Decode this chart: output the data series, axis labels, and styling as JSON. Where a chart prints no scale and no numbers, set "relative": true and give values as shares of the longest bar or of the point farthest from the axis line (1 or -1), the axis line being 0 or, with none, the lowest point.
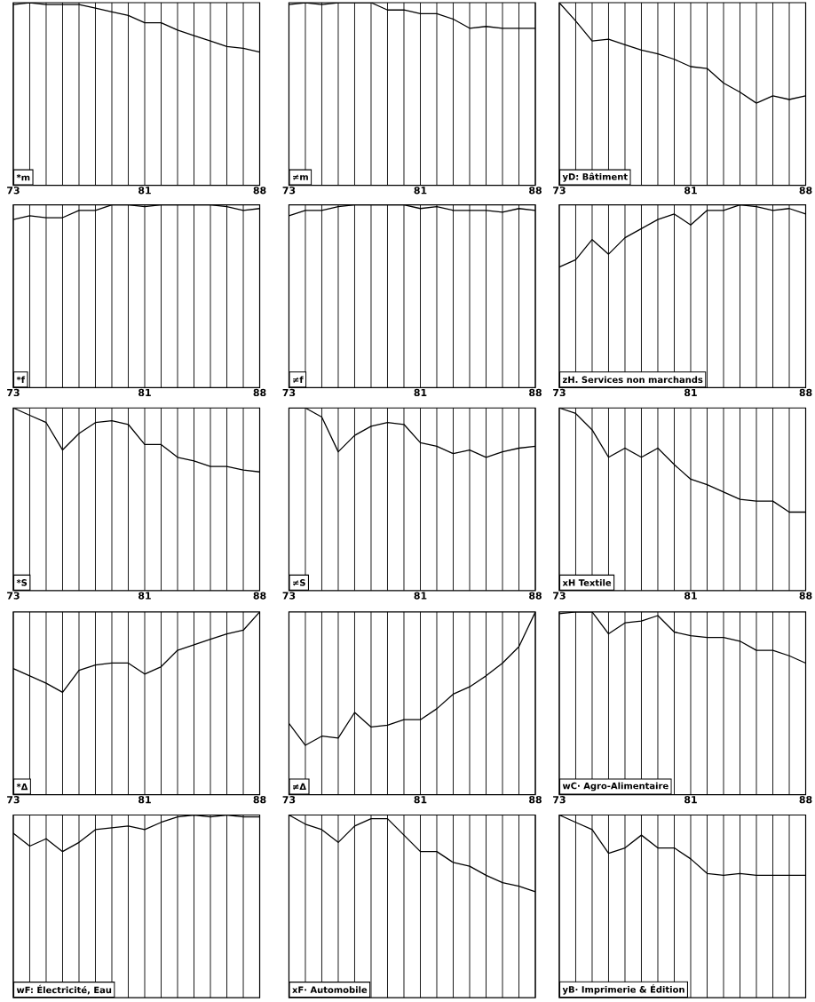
{
  "chart_data": [
    {
      "type": "line",
      "title": "*m",
      "relative": true,
      "grid": "x",
      "tick_labels": "x",
      "color": "#000000",
      "xlim": [
        73,
        88
      ],
      "xticks": [
        73,
        {
          "value": 74,
          "label": null
        },
        {
          "value": 75,
          "label": null
        },
        {
          "value": 76,
          "label": null
        },
        {
          "value": 77,
          "label": null
        },
        {
          "value": 78,
          "label": null
        },
        {
          "value": 79,
          "label": null
        },
        {
          "value": 80,
          "label": null
        },
        81,
        {
          "value": 82,
          "label": null
        },
        {
          "value": 83,
          "label": null
        },
        {
          "value": 84,
          "label": null
        },
        {
          "value": 85,
          "label": null
        },
        {
          "value": 86,
          "label": null
        },
        {
          "value": 87,
          "label": null
        },
        88
      ],
      "x": [
        73,
        74,
        75,
        76,
        77,
        78,
        79,
        80,
        81,
        82,
        83,
        84,
        85,
        86,
        87,
        88
      ],
      "values": [
        0.99,
        1.0,
        0.99,
        0.99,
        0.99,
        0.97,
        0.95,
        0.93,
        0.89,
        0.89,
        0.85,
        0.82,
        0.79,
        0.76,
        0.75,
        0.73
      ]
    },
    {
      "type": "line",
      "title": "≠m",
      "relative": true,
      "grid": "x",
      "tick_labels": "x",
      "color": "#000000",
      "xlim": [
        73,
        88
      ],
      "xticks": [
        73,
        {
          "value": 74,
          "label": null
        },
        {
          "value": 75,
          "label": null
        },
        {
          "value": 76,
          "label": null
        },
        {
          "value": 77,
          "label": null
        },
        {
          "value": 78,
          "label": null
        },
        {
          "value": 79,
          "label": null
        },
        {
          "value": 80,
          "label": null
        },
        81,
        {
          "value": 82,
          "label": null
        },
        {
          "value": 83,
          "label": null
        },
        {
          "value": 84,
          "label": null
        },
        {
          "value": 85,
          "label": null
        },
        {
          "value": 86,
          "label": null
        },
        {
          "value": 87,
          "label": null
        },
        88
      ],
      "x": [
        73,
        74,
        75,
        76,
        77,
        78,
        79,
        80,
        81,
        82,
        83,
        84,
        85,
        86,
        87,
        88
      ],
      "values": [
        0.99,
        1.0,
        0.99,
        1.0,
        1.0,
        1.0,
        0.96,
        0.96,
        0.94,
        0.94,
        0.91,
        0.86,
        0.87,
        0.86,
        0.86,
        0.86
      ]
    },
    {
      "type": "line",
      "title": "yD: Bâtiment",
      "relative": true,
      "grid": "x",
      "tick_labels": "x",
      "color": "#000000",
      "xlim": [
        73,
        88
      ],
      "xticks": [
        73,
        {
          "value": 74,
          "label": null
        },
        {
          "value": 75,
          "label": null
        },
        {
          "value": 76,
          "label": null
        },
        {
          "value": 77,
          "label": null
        },
        {
          "value": 78,
          "label": null
        },
        {
          "value": 79,
          "label": null
        },
        {
          "value": 80,
          "label": null
        },
        81,
        {
          "value": 82,
          "label": null
        },
        {
          "value": 83,
          "label": null
        },
        {
          "value": 84,
          "label": null
        },
        {
          "value": 85,
          "label": null
        },
        {
          "value": 86,
          "label": null
        },
        {
          "value": 87,
          "label": null
        },
        88
      ],
      "x": [
        73,
        74,
        75,
        76,
        77,
        78,
        79,
        80,
        81,
        82,
        83,
        84,
        85,
        86,
        87,
        88
      ],
      "values": [
        1.0,
        0.9,
        0.79,
        0.8,
        0.77,
        0.74,
        0.72,
        0.69,
        0.65,
        0.64,
        0.56,
        0.51,
        0.45,
        0.49,
        0.47,
        0.49
      ]
    },
    {
      "type": "line",
      "title": "*f",
      "relative": true,
      "grid": "x",
      "tick_labels": "x",
      "color": "#000000",
      "xlim": [
        73,
        88
      ],
      "xticks": [
        73,
        {
          "value": 74,
          "label": null
        },
        {
          "value": 75,
          "label": null
        },
        {
          "value": 76,
          "label": null
        },
        {
          "value": 77,
          "label": null
        },
        {
          "value": 78,
          "label": null
        },
        {
          "value": 79,
          "label": null
        },
        {
          "value": 80,
          "label": null
        },
        81,
        {
          "value": 82,
          "label": null
        },
        {
          "value": 83,
          "label": null
        },
        {
          "value": 84,
          "label": null
        },
        {
          "value": 85,
          "label": null
        },
        {
          "value": 86,
          "label": null
        },
        {
          "value": 87,
          "label": null
        },
        88
      ],
      "x": [
        73,
        74,
        75,
        76,
        77,
        78,
        79,
        80,
        81,
        82,
        83,
        84,
        85,
        86,
        87,
        88
      ],
      "values": [
        0.92,
        0.94,
        0.93,
        0.93,
        0.97,
        0.97,
        1.0,
        1.0,
        0.99,
        1.0,
        1.0,
        1.0,
        1.0,
        0.99,
        0.97,
        0.98
      ]
    },
    {
      "type": "line",
      "title": "≠f",
      "relative": true,
      "grid": "x",
      "tick_labels": "x",
      "color": "#000000",
      "xlim": [
        73,
        88
      ],
      "xticks": [
        73,
        {
          "value": 74,
          "label": null
        },
        {
          "value": 75,
          "label": null
        },
        {
          "value": 76,
          "label": null
        },
        {
          "value": 77,
          "label": null
        },
        {
          "value": 78,
          "label": null
        },
        {
          "value": 79,
          "label": null
        },
        {
          "value": 80,
          "label": null
        },
        81,
        {
          "value": 82,
          "label": null
        },
        {
          "value": 83,
          "label": null
        },
        {
          "value": 84,
          "label": null
        },
        {
          "value": 85,
          "label": null
        },
        {
          "value": 86,
          "label": null
        },
        {
          "value": 87,
          "label": null
        },
        88
      ],
      "x": [
        73,
        74,
        75,
        76,
        77,
        78,
        79,
        80,
        81,
        82,
        83,
        84,
        85,
        86,
        87,
        88
      ],
      "values": [
        0.94,
        0.97,
        0.97,
        0.99,
        1.0,
        1.0,
        1.0,
        1.0,
        0.98,
        0.99,
        0.97,
        0.97,
        0.97,
        0.96,
        0.98,
        0.97
      ]
    },
    {
      "type": "line",
      "title": "zH. Services non marchands",
      "relative": true,
      "grid": "x",
      "tick_labels": "x",
      "color": "#000000",
      "xlim": [
        73,
        88
      ],
      "xticks": [
        73,
        {
          "value": 74,
          "label": null
        },
        {
          "value": 75,
          "label": null
        },
        {
          "value": 76,
          "label": null
        },
        {
          "value": 77,
          "label": null
        },
        {
          "value": 78,
          "label": null
        },
        {
          "value": 79,
          "label": null
        },
        {
          "value": 80,
          "label": null
        },
        81,
        {
          "value": 82,
          "label": null
        },
        {
          "value": 83,
          "label": null
        },
        {
          "value": 84,
          "label": null
        },
        {
          "value": 85,
          "label": null
        },
        {
          "value": 86,
          "label": null
        },
        {
          "value": 87,
          "label": null
        },
        88
      ],
      "x": [
        73,
        74,
        75,
        76,
        77,
        78,
        79,
        80,
        81,
        82,
        83,
        84,
        85,
        86,
        87,
        88
      ],
      "values": [
        0.66,
        0.7,
        0.81,
        0.73,
        0.82,
        0.87,
        0.92,
        0.95,
        0.89,
        0.97,
        0.97,
        1.0,
        0.99,
        0.97,
        0.98,
        0.95
      ]
    },
    {
      "type": "line",
      "title": "*S",
      "relative": true,
      "grid": "x",
      "tick_labels": "x",
      "color": "#000000",
      "xlim": [
        73,
        88
      ],
      "xticks": [
        73,
        {
          "value": 74,
          "label": null
        },
        {
          "value": 75,
          "label": null
        },
        {
          "value": 76,
          "label": null
        },
        {
          "value": 77,
          "label": null
        },
        {
          "value": 78,
          "label": null
        },
        {
          "value": 79,
          "label": null
        },
        {
          "value": 80,
          "label": null
        },
        81,
        {
          "value": 82,
          "label": null
        },
        {
          "value": 83,
          "label": null
        },
        {
          "value": 84,
          "label": null
        },
        {
          "value": 85,
          "label": null
        },
        {
          "value": 86,
          "label": null
        },
        {
          "value": 87,
          "label": null
        },
        88
      ],
      "x": [
        73,
        74,
        75,
        76,
        77,
        78,
        79,
        80,
        81,
        82,
        83,
        84,
        85,
        86,
        87,
        88
      ],
      "values": [
        1.0,
        0.96,
        0.92,
        0.77,
        0.86,
        0.92,
        0.93,
        0.91,
        0.8,
        0.8,
        0.73,
        0.71,
        0.68,
        0.68,
        0.66,
        0.65
      ]
    },
    {
      "type": "line",
      "title": "≠S",
      "relative": true,
      "grid": "x",
      "tick_labels": "x",
      "color": "#000000",
      "xlim": [
        73,
        88
      ],
      "xticks": [
        73,
        {
          "value": 74,
          "label": null
        },
        {
          "value": 75,
          "label": null
        },
        {
          "value": 76,
          "label": null
        },
        {
          "value": 77,
          "label": null
        },
        {
          "value": 78,
          "label": null
        },
        {
          "value": 79,
          "label": null
        },
        {
          "value": 80,
          "label": null
        },
        81,
        {
          "value": 82,
          "label": null
        },
        {
          "value": 83,
          "label": null
        },
        {
          "value": 84,
          "label": null
        },
        {
          "value": 85,
          "label": null
        },
        {
          "value": 86,
          "label": null
        },
        {
          "value": 87,
          "label": null
        },
        88
      ],
      "x": [
        73,
        74,
        75,
        76,
        77,
        78,
        79,
        80,
        81,
        82,
        83,
        84,
        85,
        86,
        87,
        88
      ],
      "values": [
        1.0,
        1.0,
        0.95,
        0.76,
        0.85,
        0.9,
        0.92,
        0.91,
        0.81,
        0.79,
        0.75,
        0.77,
        0.73,
        0.76,
        0.78,
        0.79
      ]
    },
    {
      "type": "line",
      "title": "xH  Textile",
      "relative": true,
      "grid": "x",
      "tick_labels": "x",
      "color": "#000000",
      "xlim": [
        73,
        88
      ],
      "xticks": [
        73,
        {
          "value": 74,
          "label": null
        },
        {
          "value": 75,
          "label": null
        },
        {
          "value": 76,
          "label": null
        },
        {
          "value": 77,
          "label": null
        },
        {
          "value": 78,
          "label": null
        },
        {
          "value": 79,
          "label": null
        },
        {
          "value": 80,
          "label": null
        },
        81,
        {
          "value": 82,
          "label": null
        },
        {
          "value": 83,
          "label": null
        },
        {
          "value": 84,
          "label": null
        },
        {
          "value": 85,
          "label": null
        },
        {
          "value": 86,
          "label": null
        },
        {
          "value": 87,
          "label": null
        },
        88
      ],
      "x": [
        73,
        74,
        75,
        76,
        77,
        78,
        79,
        80,
        81,
        82,
        83,
        84,
        85,
        86,
        87,
        88
      ],
      "values": [
        1.0,
        0.97,
        0.88,
        0.73,
        0.78,
        0.73,
        0.78,
        0.69,
        0.61,
        0.58,
        0.54,
        0.5,
        0.49,
        0.49,
        0.43,
        0.43
      ]
    },
    {
      "type": "line",
      "title": "*Δ",
      "relative": true,
      "grid": "x",
      "tick_labels": "x",
      "color": "#000000",
      "xlim": [
        73,
        88
      ],
      "xticks": [
        73,
        {
          "value": 74,
          "label": null
        },
        {
          "value": 75,
          "label": null
        },
        {
          "value": 76,
          "label": null
        },
        {
          "value": 77,
          "label": null
        },
        {
          "value": 78,
          "label": null
        },
        {
          "value": 79,
          "label": null
        },
        {
          "value": 80,
          "label": null
        },
        81,
        {
          "value": 82,
          "label": null
        },
        {
          "value": 83,
          "label": null
        },
        {
          "value": 84,
          "label": null
        },
        {
          "value": 85,
          "label": null
        },
        {
          "value": 86,
          "label": null
        },
        {
          "value": 87,
          "label": null
        },
        88
      ],
      "x": [
        73,
        74,
        75,
        76,
        77,
        78,
        79,
        80,
        81,
        82,
        83,
        84,
        85,
        86,
        87,
        88
      ],
      "values": [
        0.69,
        0.65,
        0.61,
        0.56,
        0.68,
        0.71,
        0.72,
        0.72,
        0.66,
        0.7,
        0.79,
        0.82,
        0.85,
        0.88,
        0.9,
        1.0
      ]
    },
    {
      "type": "line",
      "title": "≠Δ",
      "relative": true,
      "grid": "x",
      "tick_labels": "x",
      "color": "#000000",
      "xlim": [
        73,
        88
      ],
      "xticks": [
        73,
        {
          "value": 74,
          "label": null
        },
        {
          "value": 75,
          "label": null
        },
        {
          "value": 76,
          "label": null
        },
        {
          "value": 77,
          "label": null
        },
        {
          "value": 78,
          "label": null
        },
        {
          "value": 79,
          "label": null
        },
        {
          "value": 80,
          "label": null
        },
        81,
        {
          "value": 82,
          "label": null
        },
        {
          "value": 83,
          "label": null
        },
        {
          "value": 84,
          "label": null
        },
        {
          "value": 85,
          "label": null
        },
        {
          "value": 86,
          "label": null
        },
        {
          "value": 87,
          "label": null
        },
        88
      ],
      "x": [
        73,
        74,
        75,
        76,
        77,
        78,
        79,
        80,
        81,
        82,
        83,
        84,
        85,
        86,
        87,
        88
      ],
      "values": [
        0.39,
        0.27,
        0.32,
        0.31,
        0.45,
        0.37,
        0.38,
        0.41,
        0.41,
        0.47,
        0.55,
        0.59,
        0.65,
        0.72,
        0.81,
        1.0
      ]
    },
    {
      "type": "line",
      "title": "wC· Agro-Alimentaire",
      "relative": true,
      "grid": "x",
      "tick_labels": "x",
      "color": "#000000",
      "xlim": [
        73,
        88
      ],
      "xticks": [
        73,
        {
          "value": 74,
          "label": null
        },
        {
          "value": 75,
          "label": null
        },
        {
          "value": 76,
          "label": null
        },
        {
          "value": 77,
          "label": null
        },
        {
          "value": 78,
          "label": null
        },
        {
          "value": 79,
          "label": null
        },
        {
          "value": 80,
          "label": null
        },
        81,
        {
          "value": 82,
          "label": null
        },
        {
          "value": 83,
          "label": null
        },
        {
          "value": 84,
          "label": null
        },
        {
          "value": 85,
          "label": null
        },
        {
          "value": 86,
          "label": null
        },
        {
          "value": 87,
          "label": null
        },
        88
      ],
      "x": [
        73,
        74,
        75,
        76,
        77,
        78,
        79,
        80,
        81,
        82,
        83,
        84,
        85,
        86,
        87,
        88
      ],
      "values": [
        0.99,
        1.0,
        1.0,
        0.88,
        0.94,
        0.95,
        0.98,
        0.89,
        0.87,
        0.86,
        0.86,
        0.84,
        0.79,
        0.79,
        0.76,
        0.72
      ]
    },
    {
      "type": "line",
      "title": "wF: Électricité, Eau",
      "relative": true,
      "grid": "x",
      "tick_labels": false,
      "color": "#000000",
      "xlim": [
        73,
        88
      ],
      "xticks": [
        73,
        {
          "value": 74,
          "label": null
        },
        {
          "value": 75,
          "label": null
        },
        {
          "value": 76,
          "label": null
        },
        {
          "value": 77,
          "label": null
        },
        {
          "value": 78,
          "label": null
        },
        {
          "value": 79,
          "label": null
        },
        {
          "value": 80,
          "label": null
        },
        81,
        {
          "value": 82,
          "label": null
        },
        {
          "value": 83,
          "label": null
        },
        {
          "value": 84,
          "label": null
        },
        {
          "value": 85,
          "label": null
        },
        {
          "value": 86,
          "label": null
        },
        {
          "value": 87,
          "label": null
        },
        88
      ],
      "x": [
        73,
        74,
        75,
        76,
        77,
        78,
        79,
        80,
        81,
        82,
        83,
        84,
        85,
        86,
        87,
        88
      ],
      "values": [
        0.9,
        0.83,
        0.87,
        0.8,
        0.85,
        0.92,
        0.93,
        0.94,
        0.92,
        0.96,
        0.99,
        1.0,
        0.99,
        1.0,
        0.99,
        0.99
      ]
    },
    {
      "type": "line",
      "title": "xF· Automobile",
      "relative": true,
      "grid": "x",
      "tick_labels": false,
      "color": "#000000",
      "xlim": [
        73,
        88
      ],
      "xticks": [
        73,
        {
          "value": 74,
          "label": null
        },
        {
          "value": 75,
          "label": null
        },
        {
          "value": 76,
          "label": null
        },
        {
          "value": 77,
          "label": null
        },
        {
          "value": 78,
          "label": null
        },
        {
          "value": 79,
          "label": null
        },
        {
          "value": 80,
          "label": null
        },
        81,
        {
          "value": 82,
          "label": null
        },
        {
          "value": 83,
          "label": null
        },
        {
          "value": 84,
          "label": null
        },
        {
          "value": 85,
          "label": null
        },
        {
          "value": 86,
          "label": null
        },
        {
          "value": 87,
          "label": null
        },
        88
      ],
      "x": [
        73,
        74,
        75,
        76,
        77,
        78,
        79,
        80,
        81,
        82,
        83,
        84,
        85,
        86,
        87,
        88
      ],
      "values": [
        1.0,
        0.95,
        0.92,
        0.85,
        0.94,
        0.98,
        0.98,
        0.89,
        0.8,
        0.8,
        0.74,
        0.72,
        0.67,
        0.63,
        0.61,
        0.58
      ]
    },
    {
      "type": "line",
      "title": "yB· Imprimerie & Édition",
      "relative": true,
      "grid": "x",
      "tick_labels": false,
      "color": "#000000",
      "xlim": [
        73,
        88
      ],
      "xticks": [
        73,
        {
          "value": 74,
          "label": null
        },
        {
          "value": 75,
          "label": null
        },
        {
          "value": 76,
          "label": null
        },
        {
          "value": 77,
          "label": null
        },
        {
          "value": 78,
          "label": null
        },
        {
          "value": 79,
          "label": null
        },
        {
          "value": 80,
          "label": null
        },
        81,
        {
          "value": 82,
          "label": null
        },
        {
          "value": 83,
          "label": null
        },
        {
          "value": 84,
          "label": null
        },
        {
          "value": 85,
          "label": null
        },
        {
          "value": 86,
          "label": null
        },
        {
          "value": 87,
          "label": null
        },
        88
      ],
      "x": [
        73,
        74,
        75,
        76,
        77,
        78,
        79,
        80,
        81,
        82,
        83,
        84,
        85,
        86,
        87,
        88
      ],
      "values": [
        1.0,
        0.96,
        0.92,
        0.79,
        0.82,
        0.89,
        0.82,
        0.82,
        0.76,
        0.68,
        0.67,
        0.68,
        0.67,
        0.67,
        0.67,
        0.67
      ]
    }
  ]
}
